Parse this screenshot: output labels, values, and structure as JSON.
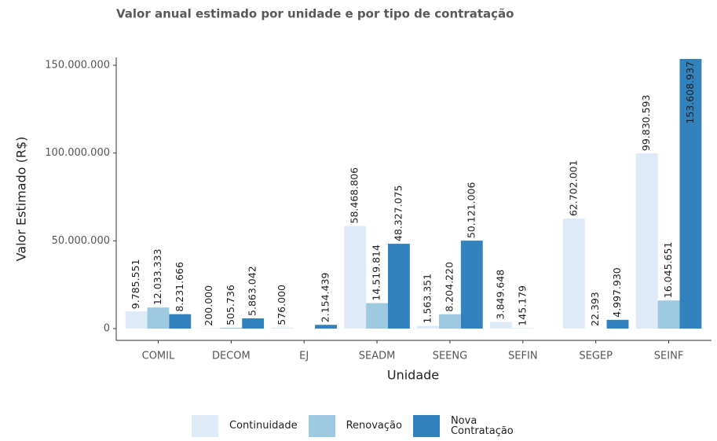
{
  "chart_data": {
    "type": "bar",
    "title": "Valor anual estimado por unidade e por tipo de contratação",
    "x_label": "Unidade",
    "y_label": "Valor Estimado (R$)",
    "categories": [
      "COMIL",
      "DECOM",
      "EJ",
      "SEADM",
      "SEENG",
      "SEFIN",
      "SEGEP",
      "SEINF"
    ],
    "series": [
      {
        "name": "Continuidade",
        "color": "#deebf7",
        "values": [
          9785551,
          200000,
          576000,
          58468806,
          1563351,
          3849648,
          62702001,
          99830593
        ],
        "value_labels": [
          "9.785.551",
          "200.000",
          "576.000",
          "58.468.806",
          "1.563.351",
          "3.849.648",
          "62.702.001",
          "99.830.593"
        ]
      },
      {
        "name": "Renovação",
        "color": "#9ecae1",
        "values": [
          12033333,
          505736,
          null,
          14519814,
          8204220,
          145179,
          22393,
          16045651
        ],
        "value_labels": [
          "12.033.333",
          "505.736",
          null,
          "14.519.814",
          "8.204.220",
          "145.179",
          "22.393",
          "16.045.651"
        ]
      },
      {
        "name": "Nova Contratação",
        "color": "#3182bd",
        "values": [
          8231666,
          5863042,
          2154439,
          48327075,
          50121006,
          null,
          4997930,
          153608937
        ],
        "value_labels": [
          "8.231.666",
          "5.863.042",
          "2.154.439",
          "48.327.075",
          "50.121.006",
          null,
          "4.997.930",
          "153.608.937"
        ]
      }
    ],
    "ylim": [
      -6700000,
      154500000
    ],
    "yticks": [
      0,
      {
        "value": 50000000,
        "label": "50.000.000"
      },
      {
        "value": 100000000,
        "label": "100.000.000"
      },
      {
        "value": 150000000,
        "label": "150.000.000"
      }
    ],
    "legend": "bottom"
  }
}
